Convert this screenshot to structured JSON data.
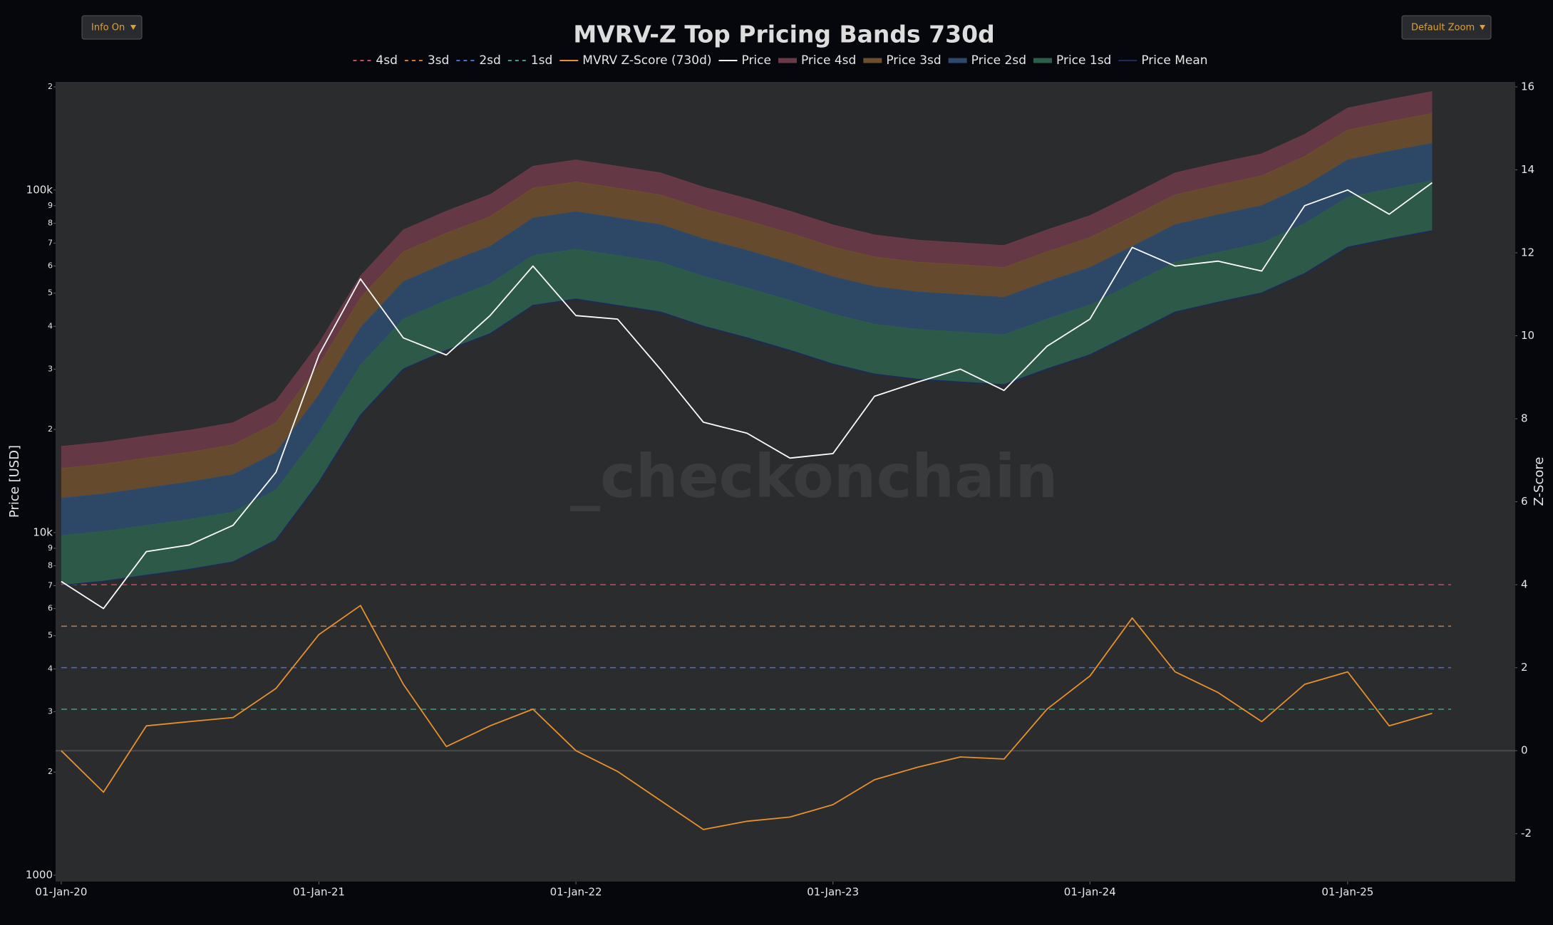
{
  "chart_data": {
    "type": "line",
    "title": "MVRV-Z Top Pricing Bands 730d",
    "buttons": [
      "Info On",
      "Default Zoom"
    ],
    "watermark": "_checkonchain",
    "ylabel": "Price [USD]",
    "y2label": "Z-Score",
    "log_y": true,
    "grid": false,
    "x": [
      "2020-01-01",
      "2020-03-01",
      "2020-05-01",
      "2020-07-01",
      "2020-09-01",
      "2020-11-01",
      "2021-01-01",
      "2021-03-01",
      "2021-05-01",
      "2021-07-01",
      "2021-09-01",
      "2021-11-01",
      "2022-01-01",
      "2022-03-01",
      "2022-05-01",
      "2022-07-01",
      "2022-09-01",
      "2022-11-01",
      "2023-01-01",
      "2023-03-01",
      "2023-05-01",
      "2023-07-01",
      "2023-09-01",
      "2023-11-01",
      "2024-01-01",
      "2024-03-01",
      "2024-05-01",
      "2024-07-01",
      "2024-09-01",
      "2024-11-01",
      "2025-01-01",
      "2025-03-01",
      "2025-05-01"
    ],
    "xlim": [
      "2019-12-24",
      "2025-08-27"
    ],
    "xticks": [
      {
        "value": "2020-01-01",
        "label": "01-Jan-20"
      },
      {
        "value": "2021-01-01",
        "label": "01-Jan-21"
      },
      {
        "value": "2022-01-01",
        "label": "01-Jan-22"
      },
      {
        "value": "2023-01-01",
        "label": "01-Jan-23"
      },
      {
        "value": "2024-01-01",
        "label": "01-Jan-24"
      },
      {
        "value": "2025-01-01",
        "label": "01-Jan-25"
      }
    ],
    "ylim": [
      1000,
      200000
    ],
    "yticks": [
      1000,
      {
        "value": 2000,
        "label": "2"
      },
      {
        "value": 3000,
        "label": "3"
      },
      {
        "value": 4000,
        "label": "4"
      },
      {
        "value": 5000,
        "label": "5"
      },
      {
        "value": 6000,
        "label": "6"
      },
      {
        "value": 7000,
        "label": "7"
      },
      {
        "value": 8000,
        "label": "8"
      },
      {
        "value": 9000,
        "label": "9"
      },
      {
        "value": 10000,
        "label": "10k"
      },
      {
        "value": 20000,
        "label": "2"
      },
      {
        "value": 30000,
        "label": "3"
      },
      {
        "value": 40000,
        "label": "4"
      },
      {
        "value": 50000,
        "label": "5"
      },
      {
        "value": 60000,
        "label": "6"
      },
      {
        "value": 70000,
        "label": "7"
      },
      {
        "value": 80000,
        "label": "8"
      },
      {
        "value": 90000,
        "label": "9"
      },
      {
        "value": 100000,
        "label": "100k"
      },
      {
        "value": 200000,
        "label": "2"
      }
    ],
    "y2lim": [
      -3,
      16
    ],
    "y2ticks": [
      -2,
      0,
      2,
      4,
      6,
      8,
      10,
      12,
      14,
      16
    ],
    "reference_lines": [
      {
        "name": "4sd",
        "color": "#c94a5c",
        "value": 4
      },
      {
        "name": "3sd",
        "color": "#d07a3a",
        "value": 3
      },
      {
        "name": "2sd",
        "color": "#4a6fcf",
        "value": 2
      },
      {
        "name": "1sd",
        "color": "#3fa07a",
        "value": 1
      }
    ],
    "series": [
      {
        "name": "MVRV Z-Score (730d)",
        "color": "#e8902c",
        "axis": "y2",
        "values": [
          0,
          -1.0,
          0.6,
          0.7,
          0.8,
          1.5,
          2.8,
          3.5,
          1.6,
          0.1,
          0.6,
          1.0,
          0,
          -0.5,
          -1.2,
          -1.9,
          -1.7,
          -1.6,
          -1.3,
          -0.7,
          -0.4,
          -0.15,
          -0.2,
          1.0,
          1.8,
          3.2,
          1.9,
          1.4,
          0.7,
          1.6,
          1.9,
          0.6,
          0.9
        ]
      },
      {
        "name": "Price",
        "color": "#ffffff",
        "values": [
          7200,
          6000,
          8800,
          9200,
          10500,
          15000,
          33000,
          55000,
          37000,
          33000,
          43000,
          60000,
          43000,
          42000,
          30000,
          21000,
          19500,
          16500,
          17000,
          25000,
          27500,
          30000,
          26000,
          35000,
          42000,
          68000,
          60000,
          62000,
          58000,
          90000,
          100000,
          85000,
          105000
        ]
      },
      {
        "name": "Price 4sd",
        "color": "#6b3a48",
        "fill": true,
        "values": [
          17850,
          18360,
          19125,
          19890,
          20910,
          24225,
          35700,
          56100,
          76500,
          86700,
          96900,
          117300,
          122400,
          117300,
          112200,
          102000,
          94350,
          86700,
          79050,
          73950,
          71400,
          70125,
          68850,
          76500,
          84150,
          96900,
          112200,
          119850,
          127500,
          145350,
          173400,
          183600,
          193800
        ]
      },
      {
        "name": "Price 3sd",
        "color": "#6d4e2e",
        "fill": true,
        "values": [
          15400,
          15840,
          16500,
          17160,
          18040,
          20900,
          30800,
          48400,
          66000,
          74800,
          83600,
          101200,
          105600,
          101200,
          96800,
          88000,
          81400,
          74800,
          68200,
          63800,
          61600,
          60500,
          59400,
          66000,
          72600,
          83600,
          96800,
          103400,
          110000,
          125400,
          149600,
          158400,
          167200
        ]
      },
      {
        "name": "Price 2sd",
        "color": "#2d4a6e",
        "fill": true,
        "values": [
          12600,
          12960,
          13500,
          14040,
          14760,
          17100,
          25200,
          39600,
          54000,
          61200,
          68400,
          82800,
          86400,
          82800,
          79200,
          72000,
          66600,
          61200,
          55800,
          52200,
          50400,
          49500,
          48600,
          54000,
          59400,
          68400,
          79200,
          84600,
          90000,
          102600,
          122400,
          129600,
          136800
        ]
      },
      {
        "name": "Price 1sd",
        "color": "#2d5e4b",
        "fill": true,
        "values": [
          9800,
          10080,
          10500,
          10920,
          11480,
          13300,
          19600,
          30800,
          42000,
          47600,
          53200,
          64400,
          67200,
          64400,
          61600,
          56000,
          51800,
          47600,
          43400,
          40600,
          39200,
          38500,
          37800,
          42000,
          46200,
          53200,
          61600,
          65800,
          70000,
          79800,
          95200,
          100800,
          106400
        ]
      },
      {
        "name": "Price Mean",
        "color": "#1e2a5a",
        "values": [
          7000,
          7200,
          7500,
          7800,
          8200,
          9500,
          14000,
          22000,
          30000,
          34000,
          38000,
          46000,
          48000,
          46000,
          44000,
          40000,
          37000,
          34000,
          31000,
          29000,
          28000,
          27500,
          27000,
          30000,
          33000,
          38000,
          44000,
          47000,
          50000,
          57000,
          68000,
          72000,
          76000
        ]
      }
    ]
  }
}
